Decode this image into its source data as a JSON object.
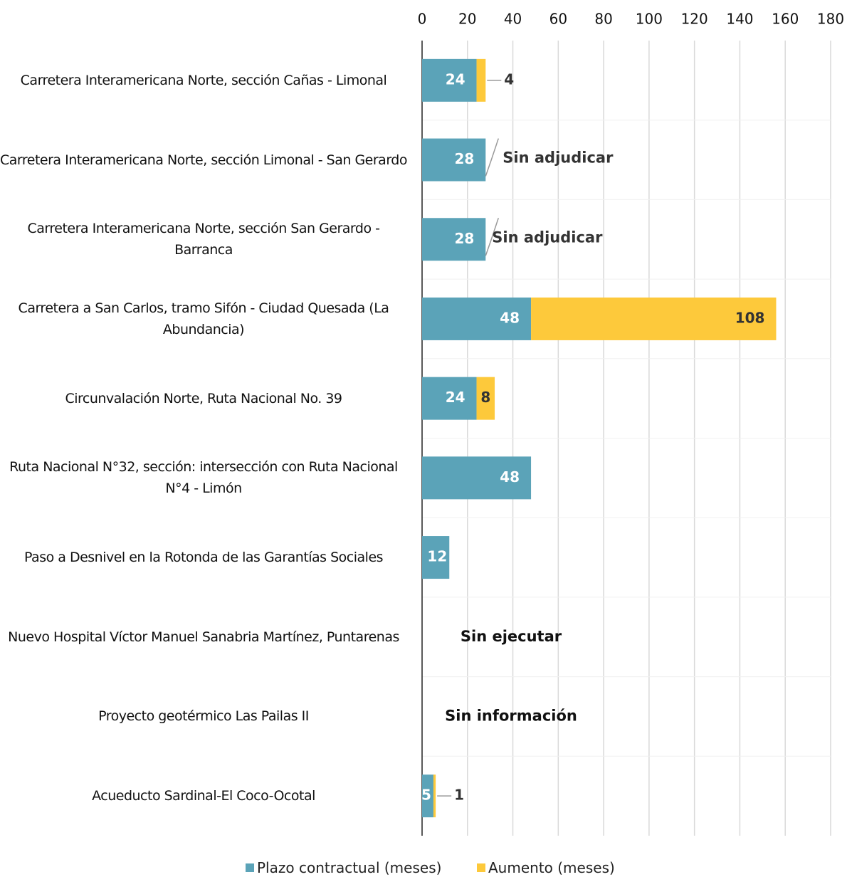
{
  "chart_data": {
    "type": "stacked_bar_horizontal",
    "categories": [
      "Carretera Interamericana Norte, sección Cañas - Limonal",
      "Carretera Interamericana Norte, sección Limonal - San Gerardo",
      "Carretera Interamericana Norte, sección San Gerardo - Barranca",
      "Carretera a San Carlos, tramo Sifón - Ciudad Quesada (La Abundancia)",
      "Circunvalación Norte, Ruta Nacional No. 39",
      "Ruta Nacional N°32, sección: intersección con  Ruta Nacional N°4 - Limón",
      "Paso a Desnivel en la Rotonda de las Garantías Sociales",
      "Nuevo Hospital Víctor Manuel Sanabria Martínez, Puntarenas",
      "Proyecto geotérmico Las Pailas II",
      "Acueducto Sardinal-El Coco-Ocotal"
    ],
    "series": [
      {
        "name": "Plazo contractual (meses)",
        "color": "#5ba3b8",
        "values": [
          24,
          28,
          28,
          48,
          24,
          48,
          12,
          null,
          null,
          5
        ]
      },
      {
        "name": "Aumento (meses)",
        "color": "#fdc93b",
        "values": [
          4,
          null,
          null,
          108,
          8,
          null,
          null,
          null,
          null,
          1
        ]
      }
    ],
    "notes": [
      null,
      "Sin adjudicar",
      "Sin adjudicar",
      null,
      null,
      null,
      null,
      "Sin ejecutar",
      "Sin información",
      null
    ],
    "xlim": [
      0,
      180
    ],
    "xticks": [
      0,
      20,
      40,
      60,
      80,
      100,
      120,
      140,
      160,
      180
    ],
    "grid": true,
    "legend": "bottom"
  }
}
